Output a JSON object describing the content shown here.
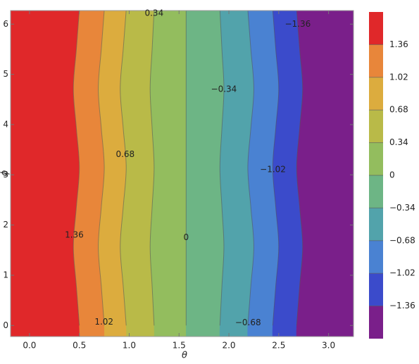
{
  "chart_data": {
    "type": "contour",
    "x_label": "θ",
    "y_label": "ϕ",
    "xlim": [
      -0.19,
      3.25
    ],
    "ylim": [
      -0.22,
      6.27
    ],
    "xticks": [
      {
        "value": 0,
        "label": "0.0"
      },
      0.5,
      {
        "value": 1,
        "label": "1.0"
      },
      1.5,
      {
        "value": 2,
        "label": "2.0"
      },
      2.5,
      {
        "value": 3,
        "label": "3.0"
      }
    ],
    "yticks": [
      0,
      1,
      2,
      3,
      4,
      5,
      6
    ],
    "phi": [
      0,
      0.785,
      1.571,
      2.356,
      3.142,
      3.927,
      4.712,
      5.498,
      6.283
    ],
    "levels": [
      1.36,
      1.02,
      0.68,
      0.34,
      0,
      -0.34,
      -0.68,
      -1.02,
      -1.36
    ],
    "value_labels": [
      "1.36",
      "1.02",
      "0.68",
      "0.34",
      "0",
      "−0.34",
      "−0.68",
      "−1.02",
      "−1.36"
    ],
    "contour_theta": [
      [
        0.5,
        0.47,
        0.44,
        0.47,
        0.5,
        0.47,
        0.44,
        0.47,
        0.5
      ],
      [
        0.75,
        0.72,
        0.69,
        0.72,
        0.75,
        0.72,
        0.69,
        0.72,
        0.75
      ],
      [
        0.97,
        0.94,
        0.91,
        0.94,
        0.97,
        0.94,
        0.91,
        0.94,
        0.97
      ],
      [
        1.25,
        1.23,
        1.21,
        1.23,
        1.25,
        1.23,
        1.21,
        1.23,
        1.25
      ],
      [
        1.571,
        1.571,
        1.571,
        1.571,
        1.571,
        1.571,
        1.571,
        1.571,
        1.571
      ],
      [
        1.91,
        1.93,
        1.95,
        1.93,
        1.91,
        1.93,
        1.95,
        1.93,
        1.91
      ],
      [
        2.19,
        2.22,
        2.25,
        2.22,
        2.19,
        2.22,
        2.25,
        2.22,
        2.19
      ],
      [
        2.44,
        2.47,
        2.5,
        2.47,
        2.44,
        2.47,
        2.5,
        2.47,
        2.44
      ],
      [
        2.68,
        2.71,
        2.74,
        2.71,
        2.68,
        2.71,
        2.74,
        2.71,
        2.68
      ]
    ],
    "band_colors": [
      "#e0282a",
      "#e8863a",
      "#dcac3e",
      "#b9ba48",
      "#93bd5e",
      "#6db585",
      "#52a3ab",
      "#4a82d2",
      "#3b4bcb",
      "#7a1f8a"
    ],
    "colorbar_lim": [
      -1.7,
      1.7
    ],
    "colorbar_ticks": [
      1.36,
      1.02,
      0.68,
      0.34,
      0,
      {
        "value": -0.34,
        "label": "−0.34"
      },
      {
        "value": -0.68,
        "label": "−0.68"
      },
      {
        "value": -1.02,
        "label": "−1.02"
      },
      {
        "value": -1.36,
        "label": "−1.36"
      }
    ]
  }
}
